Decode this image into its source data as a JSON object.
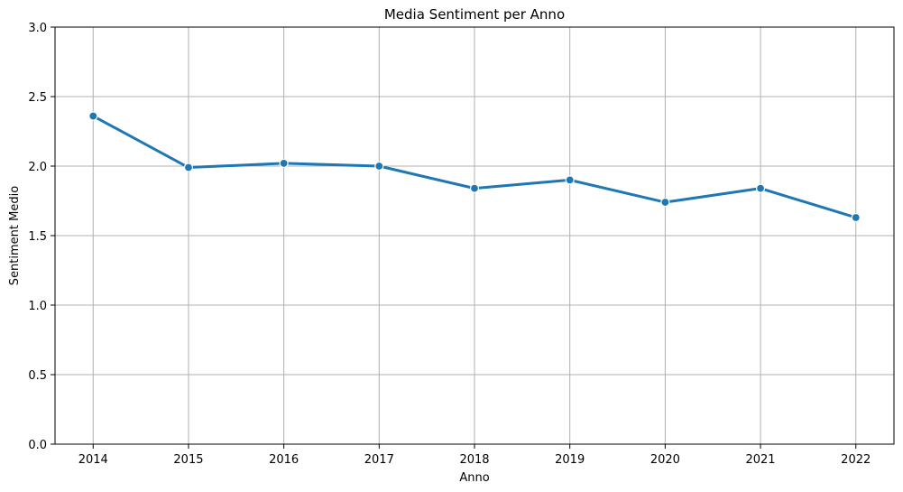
{
  "chart_data": {
    "type": "line",
    "title": "Media Sentiment per Anno",
    "xlabel": "Anno",
    "ylabel": "Sentiment Medio",
    "x": [
      2014,
      2015,
      2016,
      2017,
      2018,
      2019,
      2020,
      2021,
      2022
    ],
    "x_tick_labels": [
      "2014",
      "2015",
      "2016",
      "2017",
      "2018",
      "2019",
      "2020",
      "2021",
      "2022"
    ],
    "ylim": [
      0,
      3.0
    ],
    "y_ticks": [
      0,
      0.5,
      1.0,
      1.5,
      2.0,
      2.5,
      3.0
    ],
    "y_tick_labels": [
      "0.0",
      "0.5",
      "1.0",
      "1.5",
      "2.0",
      "2.5",
      "3.0"
    ],
    "series": [
      {
        "values": [
          2.36,
          1.99,
          2.02,
          2.0,
          1.84,
          1.9,
          1.74,
          1.84,
          1.63
        ],
        "color": "#1f77b4",
        "marker": "circle"
      }
    ],
    "grid": true,
    "legend": "none"
  }
}
